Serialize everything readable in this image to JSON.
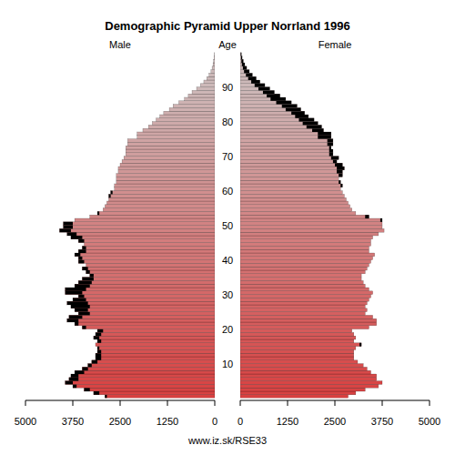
{
  "chart_data": {
    "type": "pyramid",
    "title": "Demographic Pyramid Upper Norrland 1996",
    "y_label": "Age",
    "source": "www.iz.sk/RSE33",
    "categories": [
      null,
      null,
      null,
      null,
      null,
      null,
      null,
      null,
      null,
      null,
      "10",
      null,
      null,
      null,
      null,
      null,
      null,
      null,
      null,
      null,
      "20",
      null,
      null,
      null,
      null,
      null,
      null,
      null,
      null,
      null,
      "30",
      null,
      null,
      null,
      null,
      null,
      null,
      null,
      null,
      null,
      "40",
      null,
      null,
      null,
      null,
      null,
      null,
      null,
      null,
      null,
      "50",
      null,
      null,
      null,
      null,
      null,
      null,
      null,
      null,
      null,
      "60",
      null,
      null,
      null,
      null,
      null,
      null,
      null,
      null,
      null,
      "70",
      null,
      null,
      null,
      null,
      null,
      null,
      null,
      null,
      null,
      "80",
      null,
      null,
      null,
      null,
      null,
      null,
      null,
      null,
      null,
      "90",
      null,
      null,
      null,
      null,
      null,
      null,
      null,
      null,
      null
    ],
    "series": [
      {
        "name": "Male",
        "color": "#d84040",
        "values": [
          2900,
          3200,
          3450,
          3750,
          3950,
          3850,
          3800,
          3700,
          3500,
          3350,
          3250,
          3150,
          3150,
          3100,
          3100,
          3150,
          3100,
          3200,
          3150,
          3100,
          3500,
          3700,
          3900,
          3850,
          3600,
          3700,
          3800,
          3900,
          3750,
          3600,
          3950,
          3950,
          3700,
          3600,
          3500,
          3300,
          3400,
          3500,
          3400,
          3600,
          3600,
          3700,
          3600,
          3500,
          3450,
          3600,
          3800,
          3900,
          4100,
          4000,
          4000,
          3700,
          3300,
          3100,
          2950,
          2900,
          2850,
          2800,
          2800,
          2750,
          2650,
          2650,
          2600,
          2600,
          2600,
          2550,
          2550,
          2500,
          2450,
          2400,
          2350,
          2350,
          2350,
          2300,
          2300,
          2050,
          2050,
          1900,
          1750,
          1650,
          1550,
          1450,
          1350,
          1200,
          1100,
          950,
          800,
          700,
          600,
          480,
          380,
          290,
          210,
          150,
          100,
          70,
          45,
          30,
          20,
          10
        ]
      },
      {
        "name": "Female",
        "color": "#d84040",
        "values": [
          2850,
          3050,
          3300,
          3650,
          3750,
          3600,
          3600,
          3450,
          3350,
          3250,
          3100,
          3000,
          3000,
          3000,
          3050,
          3200,
          3000,
          3050,
          3000,
          2950,
          3400,
          3600,
          3600,
          3500,
          3300,
          3350,
          3300,
          3350,
          3400,
          3450,
          3500,
          3400,
          3300,
          3250,
          3200,
          3200,
          3300,
          3350,
          3400,
          3450,
          3500,
          3550,
          3400,
          3400,
          3450,
          3450,
          3500,
          3650,
          3800,
          3750,
          3750,
          3750,
          3400,
          3050,
          2950,
          2900,
          2850,
          2800,
          2750,
          2700,
          2650,
          2700,
          2650,
          2600,
          2700,
          2700,
          2750,
          2700,
          2550,
          2600,
          2450,
          2450,
          2400,
          2450,
          2450,
          2400,
          2400,
          2200,
          2150,
          2050,
          1950,
          1800,
          1700,
          1600,
          1500,
          1350,
          1200,
          1050,
          900,
          780,
          650,
          520,
          420,
          320,
          240,
          170,
          120,
          80,
          50,
          30
        ]
      }
    ],
    "orientation": "horizontal",
    "xlim": [
      0,
      5000
    ],
    "xticks": [
      0,
      1250,
      2500,
      3750,
      5000
    ],
    "ylim": [
      0,
      100
    ]
  }
}
